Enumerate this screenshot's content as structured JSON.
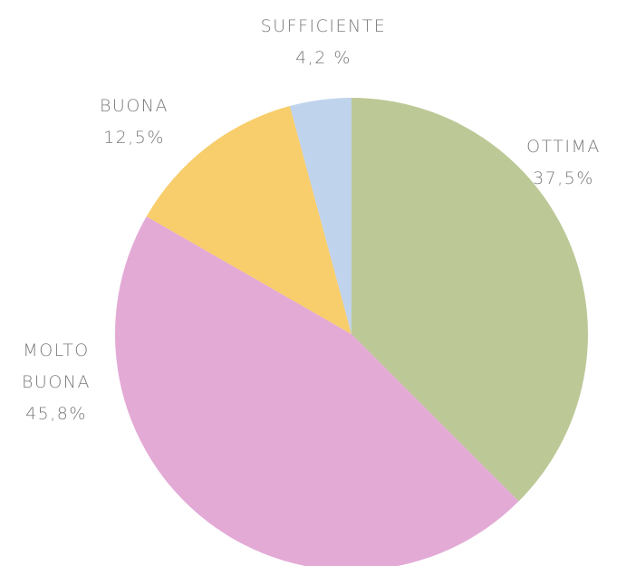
{
  "chart_data": {
    "type": "pie",
    "categories": [
      "OTTIMA",
      "MOLTO BUONA",
      "BUONA",
      "SUFFICIENTE"
    ],
    "values": [
      37.5,
      45.8,
      12.5,
      4.2
    ],
    "value_labels": [
      "37,5%",
      "45,8%",
      "12,5%",
      "4,2 %"
    ],
    "colors": [
      "#bcc896",
      "#e3aad6",
      "#f8cd6b",
      "#c0d3ec"
    ]
  }
}
